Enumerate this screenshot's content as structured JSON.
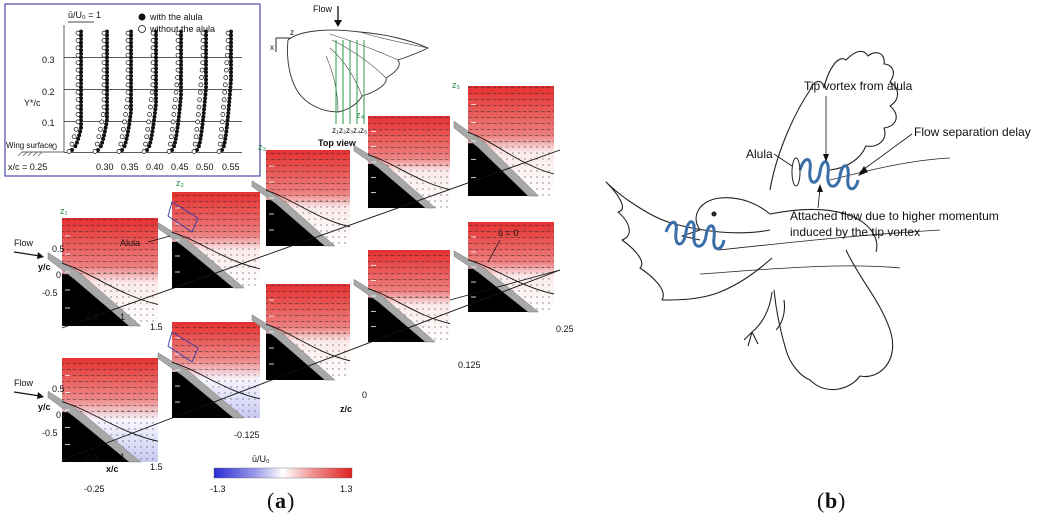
{
  "panel_a": {
    "caption_open": "(",
    "caption_letter": "a",
    "caption_close": ")",
    "inset": {
      "legend_with": "with the alula",
      "legend_without": "without the alula",
      "u_ref": "ū/U₀ = 1",
      "ylabel": "Y*/c",
      "y_ticks": [
        "0.3",
        "0.2",
        "0.1",
        "0"
      ],
      "wing_surface": "Wing surface",
      "x_prefix": "x/c = 0.25",
      "x_stations": [
        "0.30",
        "0.35",
        "0.40",
        "0.45",
        "0.50",
        "0.55"
      ]
    },
    "topview": {
      "flow": "Flow",
      "x_axis": "x",
      "z_axis": "z",
      "label": "Top view",
      "stations": [
        "z₁",
        "z₂",
        "z₃",
        "z₄",
        "z₅"
      ]
    },
    "row_labels": {
      "flow": "Flow",
      "yc": "y/c",
      "xc": "x/c"
    },
    "yc_ticks": [
      "0.5",
      "0",
      "-0.5"
    ],
    "xc_ticks": [
      "0.5",
      "1",
      "1.5"
    ],
    "z_labels": [
      "z₁",
      "z₂",
      "z₃",
      "z₄",
      "z₅"
    ],
    "alula_label": "Alula",
    "u_zero": "ū = 0",
    "z_axis_label": "z/c",
    "z_ticks_lower": [
      "-0.25",
      "-0.125",
      "0"
    ],
    "z_ticks_upper": [
      "0.125",
      "0.25"
    ],
    "colorbar": {
      "label": "ū/U₀",
      "min": "-1.3",
      "max": "1.3",
      "colors": [
        "#2b2bd9",
        "#8c8ce6",
        "#ffffff",
        "#ee8888",
        "#e02020"
      ]
    }
  },
  "panel_b": {
    "caption_open": "(",
    "caption_letter": "b",
    "caption_close": ")",
    "tip_vortex": "Tip vortex from alula",
    "flow_sep": "Flow separation delay",
    "alula": "Alula",
    "attached_1": "Attached flow due to higher momentum",
    "attached_2": "induced by the tip vortex",
    "vortex_color": "#3a6ea8"
  }
}
